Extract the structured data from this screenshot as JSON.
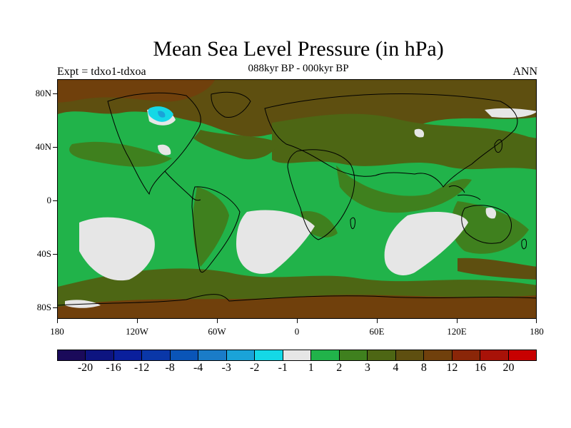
{
  "title": "Mean Sea Level Pressure (in hPa)",
  "subtitle": "088kyr BP - 000kyr BP",
  "left_label": "Expt = tdxo1-tdxoa",
  "right_label": "ANN",
  "lat_ticks": [
    "80N",
    "40N",
    "0",
    "40S",
    "80S"
  ],
  "lon_ticks": [
    "180",
    "120W",
    "60W",
    "0",
    "60E",
    "120E",
    "180"
  ],
  "colorbar": {
    "colors": [
      "#1a0a5a",
      "#0d1480",
      "#0a1f9c",
      "#0a37a8",
      "#0a55b8",
      "#1a7cc8",
      "#1aa3d8",
      "#14d8e6",
      "#e6e6e6",
      "#21b34a",
      "#3f801e",
      "#4d6614",
      "#5e4f10",
      "#70400c",
      "#8a2608",
      "#a81208",
      "#c80000"
    ],
    "labels": [
      "-20",
      "-16",
      "-12",
      "-8",
      "-4",
      "-3",
      "-2",
      "-1",
      "1",
      "2",
      "3",
      "4",
      "8",
      "12",
      "16",
      "20"
    ]
  },
  "legend_levels": {
    "near_zero": "#e6e6e6",
    "level_2": "#21b34a",
    "level_3": "#3f801e",
    "level_4": "#4d6614",
    "level_8": "#5e4f10",
    "negative_small": "#14d8e6",
    "negative_medium": "#1aa3d8"
  }
}
